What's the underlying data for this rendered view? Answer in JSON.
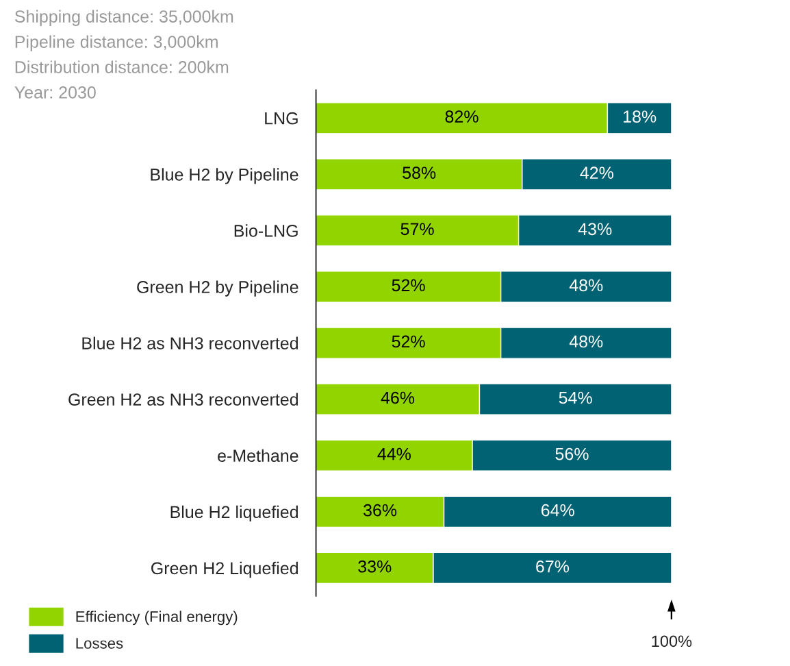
{
  "chart_data": {
    "type": "bar",
    "orientation": "horizontal",
    "stacked": true,
    "categories": [
      "LNG",
      "Blue H2 by Pipeline",
      "Bio-LNG",
      "Green H2 by Pipeline",
      "Blue H2 as NH3 reconverted",
      "Green H2 as NH3 reconverted",
      "e-Methane",
      "Blue H2 liquefied",
      "Green H2 Liquefied"
    ],
    "series": [
      {
        "name": "Efficiency (Final energy)",
        "color": "#92d400",
        "values": [
          82,
          58,
          57,
          52,
          52,
          46,
          44,
          36,
          33
        ],
        "value_labels": [
          "82%",
          "58%",
          "57%",
          "52%",
          "52%",
          "46%",
          "44%",
          "36%",
          "33%"
        ]
      },
      {
        "name": "Losses",
        "color": "#006272",
        "values": [
          18,
          42,
          43,
          48,
          48,
          54,
          56,
          64,
          67
        ],
        "value_labels": [
          "18%",
          "42%",
          "43%",
          "48%",
          "48%",
          "54%",
          "56%",
          "64%",
          "67%"
        ]
      }
    ],
    "xlim": [
      0,
      100
    ],
    "tick_labels": "y",
    "legend": "bottom left",
    "annotations": [
      "Shipping distance: 35,000km",
      "Pipeline distance: 3,000km",
      "Distribution distance: 200km",
      "Year: 2030",
      "100%"
    ]
  }
}
